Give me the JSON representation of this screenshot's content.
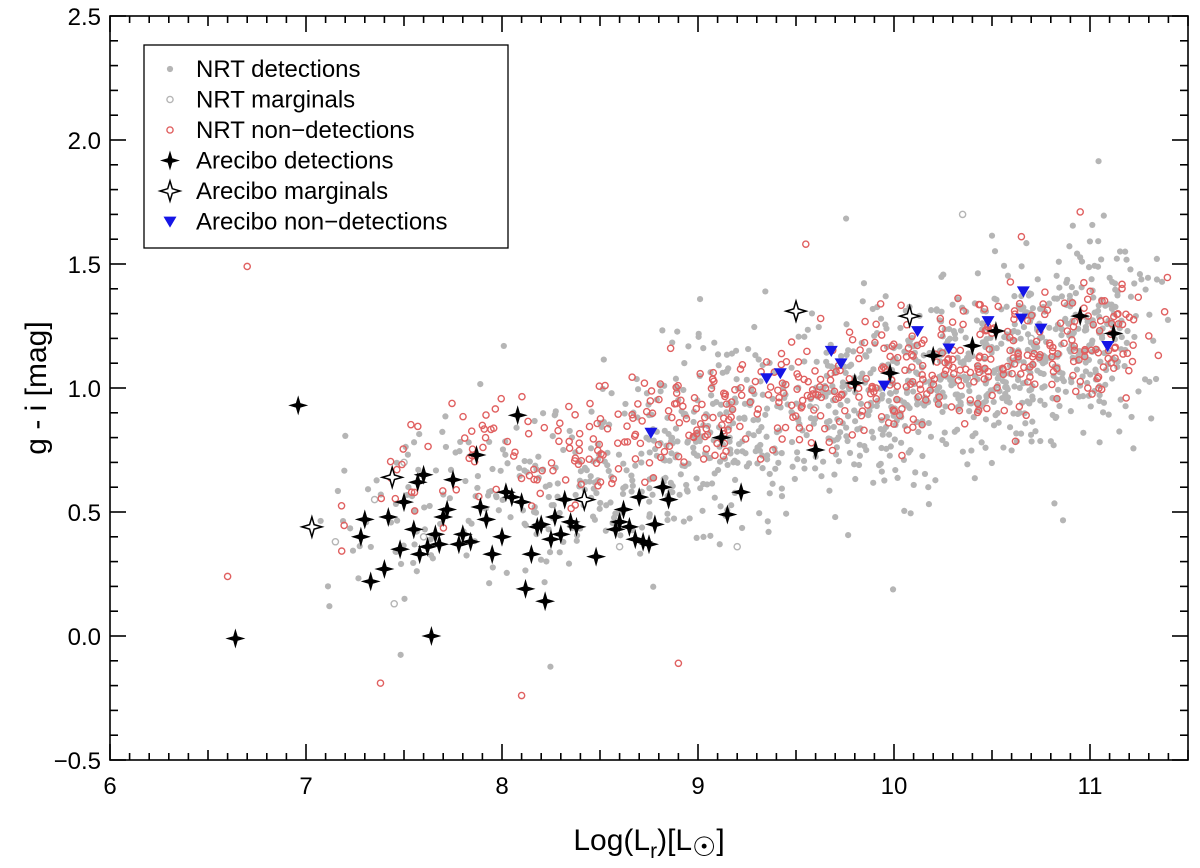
{
  "chart_data": {
    "type": "scatter",
    "xlabel": "Log(L",
    "xlabel_sub": "r",
    "xlabel_unit": ")[L",
    "xlabel_sun": "☉",
    "xlabel_end": "]",
    "ylabel": "g - i [mag]",
    "xlim": [
      6,
      11.5
    ],
    "ylim": [
      -0.5,
      2.5
    ],
    "x_ticks": [
      6,
      7,
      8,
      9,
      10,
      11
    ],
    "x_tick_labels": [
      "6",
      "7",
      "8",
      "9",
      "10",
      "11"
    ],
    "y_ticks": [
      -0.5,
      0.0,
      0.5,
      1.0,
      1.5,
      2.0,
      2.5
    ],
    "y_tick_labels": [
      "−0.5",
      "0.0",
      "0.5",
      "1.0",
      "1.5",
      "2.0",
      "2.5"
    ],
    "grid": false,
    "legend_position": "top-left",
    "series": [
      {
        "name": "NRT detections",
        "marker": "filled-circle",
        "color": "#b5b5b5",
        "trend": {
          "x0": 7.0,
          "y0": 0.4,
          "x1": 11.2,
          "y1": 1.22
        },
        "count": 1200
      },
      {
        "name": "NRT marginals",
        "marker": "open-circle",
        "color": "#b5b5b5",
        "points": [
          [
            7.15,
            0.38
          ],
          [
            7.5,
            0.7
          ],
          [
            7.35,
            0.55
          ],
          [
            8.2,
            0.45
          ],
          [
            9.2,
            0.36
          ],
          [
            9.6,
            0.92
          ],
          [
            10.35,
            1.7
          ],
          [
            8.6,
            0.36
          ],
          [
            7.45,
            0.13
          ],
          [
            10.7,
            1.2
          ],
          [
            7.6,
            0.4
          ]
        ]
      },
      {
        "name": "NRT non−detections",
        "marker": "open-circle",
        "color": "#e06060",
        "trend": {
          "x0": 7.0,
          "y0": 0.55,
          "x1": 11.2,
          "y1": 1.24
        },
        "count": 520,
        "points": [
          [
            6.6,
            0.24
          ],
          [
            6.7,
            1.49
          ],
          [
            8.9,
            -0.11
          ],
          [
            8.1,
            -0.24
          ],
          [
            9.55,
            1.58
          ],
          [
            10.95,
            1.71
          ],
          [
            10.65,
            1.61
          ],
          [
            7.38,
            -0.19
          ],
          [
            11.3,
            1.21
          ]
        ]
      },
      {
        "name": "Arecibo detections",
        "marker": "filled-star",
        "color": "#000000",
        "points": [
          [
            6.64,
            -0.01
          ],
          [
            6.96,
            0.93
          ],
          [
            7.28,
            0.4
          ],
          [
            7.3,
            0.47
          ],
          [
            7.33,
            0.22
          ],
          [
            7.4,
            0.27
          ],
          [
            7.42,
            0.48
          ],
          [
            7.48,
            0.35
          ],
          [
            7.5,
            0.54
          ],
          [
            7.55,
            0.43
          ],
          [
            7.57,
            0.62
          ],
          [
            7.6,
            0.65
          ],
          [
            7.58,
            0.33
          ],
          [
            7.62,
            0.36
          ],
          [
            7.64,
            0.0
          ],
          [
            7.66,
            0.41
          ],
          [
            7.68,
            0.37
          ],
          [
            7.7,
            0.48
          ],
          [
            7.72,
            0.51
          ],
          [
            7.75,
            0.63
          ],
          [
            7.78,
            0.37
          ],
          [
            7.8,
            0.41
          ],
          [
            7.84,
            0.38
          ],
          [
            7.87,
            0.73
          ],
          [
            7.89,
            0.52
          ],
          [
            7.92,
            0.47
          ],
          [
            7.95,
            0.33
          ],
          [
            8.0,
            0.4
          ],
          [
            8.02,
            0.58
          ],
          [
            8.05,
            0.56
          ],
          [
            8.08,
            0.89
          ],
          [
            8.1,
            0.54
          ],
          [
            8.12,
            0.19
          ],
          [
            8.15,
            0.33
          ],
          [
            8.18,
            0.44
          ],
          [
            8.2,
            0.45
          ],
          [
            8.22,
            0.14
          ],
          [
            8.25,
            0.39
          ],
          [
            8.27,
            0.48
          ],
          [
            8.3,
            0.41
          ],
          [
            8.32,
            0.55
          ],
          [
            8.35,
            0.46
          ],
          [
            8.38,
            0.44
          ],
          [
            8.48,
            0.32
          ],
          [
            8.58,
            0.43
          ],
          [
            8.6,
            0.46
          ],
          [
            8.62,
            0.51
          ],
          [
            8.65,
            0.44
          ],
          [
            8.68,
            0.39
          ],
          [
            8.7,
            0.56
          ],
          [
            8.72,
            0.38
          ],
          [
            8.75,
            0.37
          ],
          [
            8.78,
            0.45
          ],
          [
            8.82,
            0.6
          ],
          [
            8.85,
            0.55
          ],
          [
            9.12,
            0.8
          ],
          [
            9.15,
            0.49
          ],
          [
            9.22,
            0.58
          ],
          [
            9.6,
            0.75
          ],
          [
            9.8,
            1.02
          ],
          [
            9.98,
            1.06
          ],
          [
            10.2,
            1.13
          ],
          [
            10.4,
            1.17
          ],
          [
            10.52,
            1.23
          ],
          [
            10.95,
            1.29
          ],
          [
            11.12,
            1.22
          ]
        ]
      },
      {
        "name": "Arecibo marginals",
        "marker": "open-star",
        "color": "#000000",
        "points": [
          [
            7.03,
            0.44
          ],
          [
            7.44,
            0.64
          ],
          [
            8.42,
            0.55
          ],
          [
            9.5,
            1.31
          ],
          [
            10.08,
            1.29
          ]
        ]
      },
      {
        "name": "Arecibo non−detections",
        "marker": "filled-triangle-down",
        "color": "#1515e6",
        "points": [
          [
            8.76,
            0.82
          ],
          [
            9.35,
            1.04
          ],
          [
            9.42,
            1.06
          ],
          [
            9.68,
            1.15
          ],
          [
            9.73,
            1.1
          ],
          [
            9.95,
            1.01
          ],
          [
            10.12,
            1.23
          ],
          [
            10.28,
            1.16
          ],
          [
            10.48,
            1.27
          ],
          [
            10.65,
            1.28
          ],
          [
            10.66,
            1.39
          ],
          [
            10.75,
            1.24
          ],
          [
            11.09,
            1.17
          ]
        ]
      }
    ]
  }
}
